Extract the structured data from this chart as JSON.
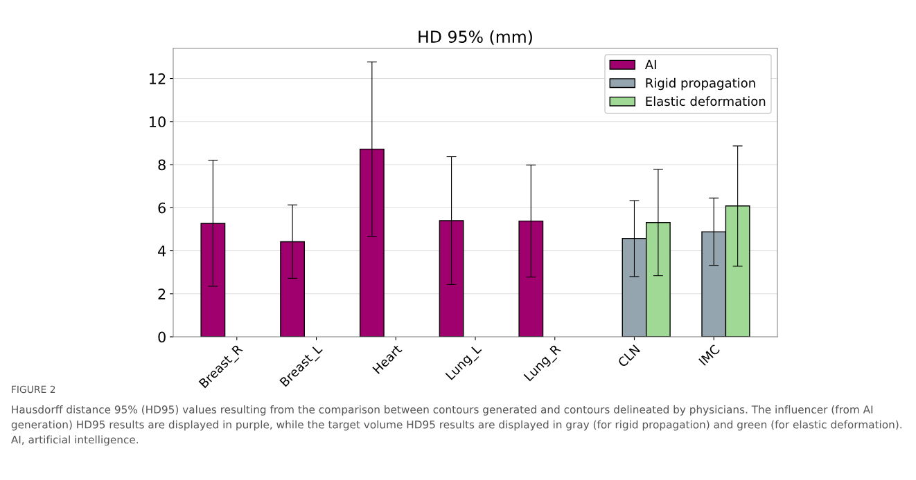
{
  "chart_data": {
    "type": "bar",
    "title": "HD 95% (mm)",
    "categories": [
      "Breast_R",
      "Breast_L",
      "Heart",
      "Lung_L",
      "Lung_R",
      "CLN",
      "IMC"
    ],
    "series": [
      {
        "name": "AI",
        "color": "#a0006e",
        "values": [
          5.27,
          4.42,
          8.72,
          5.4,
          5.38,
          null,
          null
        ],
        "errors": [
          [
            2.35,
            8.2
          ],
          [
            2.72,
            6.13
          ],
          [
            4.67,
            12.77
          ],
          [
            2.43,
            8.37
          ],
          [
            2.78,
            7.98
          ],
          null,
          null
        ]
      },
      {
        "name": "Rigid propagation",
        "color": "#95a5b0",
        "values": [
          null,
          null,
          null,
          null,
          null,
          4.57,
          4.88
        ],
        "errors": [
          null,
          null,
          null,
          null,
          null,
          [
            2.8,
            6.33
          ],
          [
            3.32,
            6.45
          ]
        ]
      },
      {
        "name": "Elastic deformation",
        "color": "#a0d995",
        "values": [
          null,
          null,
          null,
          null,
          null,
          5.31,
          6.08
        ],
        "errors": [
          null,
          null,
          null,
          null,
          null,
          [
            2.84,
            7.78
          ],
          [
            3.28,
            8.87
          ]
        ]
      }
    ],
    "ylim": [
      0,
      13.4
    ],
    "yticks": [
      0,
      2,
      4,
      6,
      8,
      10,
      12
    ],
    "grid": "y",
    "legend": "top right",
    "annotations": [
      "FIGURE 2",
      "Hausdorff distance 95% (HD95) values resulting from the comparison between contours generated and contours delineated by physicians. The influencer (from AI generation) HD95 results are displayed in purple, while the target volume HD95 results are displayed in gray (for rigid propagation) and green (for elastic deformation). AI, artificial intelligence."
    ]
  }
}
